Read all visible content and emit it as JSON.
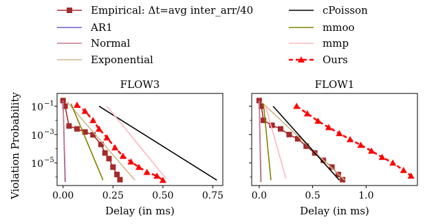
{
  "legend": {
    "entries": [
      {
        "label": "Empirical: Δt=avg inter_arr/40",
        "series": "empirical"
      },
      {
        "label": "AR1",
        "series": "ar1"
      },
      {
        "label": "Normal",
        "series": "normal"
      },
      {
        "label": "Exponential",
        "series": "exponential"
      },
      {
        "label": "cPoisson",
        "series": "cpoisson"
      },
      {
        "label": "mmoo",
        "series": "mmoo"
      },
      {
        "label": "mmp",
        "series": "mmp"
      },
      {
        "label": "Ours",
        "series": "ours"
      }
    ]
  },
  "styles": {
    "empirical": {
      "color": "#a52a2a",
      "marker": "square",
      "dash": ""
    },
    "ar1": {
      "color": "#6a5acd",
      "marker": "",
      "dash": ""
    },
    "normal": {
      "color": "#c47a8a",
      "marker": "",
      "dash": ""
    },
    "exponential": {
      "color": "#d2b48c",
      "marker": "",
      "dash": ""
    },
    "cpoisson": {
      "color": "#000000",
      "marker": "",
      "dash": ""
    },
    "mmoo": {
      "color": "#808000",
      "marker": "",
      "dash": ""
    },
    "mmp": {
      "color": "#ffb6c1",
      "marker": "",
      "dash": ""
    },
    "ours": {
      "color": "#ff0000",
      "marker": "triangle",
      "dash": "6,4"
    }
  },
  "chart_data": [
    {
      "type": "line",
      "title": "FLOW3",
      "xlabel": "Delay (in ms)",
      "ylabel": "Violation Probability",
      "yscale": "log",
      "xlim": [
        -0.03,
        0.8
      ],
      "ylim_exp": [
        -6.6,
        -0.1
      ],
      "xticks": [
        0.0,
        0.25,
        0.5,
        0.75
      ],
      "xtick_labels": [
        "0.00",
        "0.25",
        "0.50",
        "0.75"
      ],
      "yticks_exp": [
        -1,
        -3,
        -5
      ],
      "ytick_labels": [
        "10",
        "10",
        "10"
      ],
      "ytick_superscripts": [
        "−1",
        "−3",
        "−5"
      ],
      "minor_yticks_exp": [
        -2,
        -4,
        -6
      ],
      "series": [
        {
          "key": "empirical",
          "x": [
            0.0,
            0.01,
            0.03,
            0.07,
            0.11,
            0.15,
            0.19,
            0.21,
            0.23,
            0.25,
            0.27,
            0.285
          ],
          "y": [
            0.25,
            0.1,
            0.004,
            0.0025,
            0.0015,
            0.00095,
            0.0002,
            5e-05,
            2e-05,
            5e-06,
            1.5e-06,
            6.5e-07
          ]
        },
        {
          "key": "ar1",
          "x": [
            0.0,
            0.01
          ],
          "y": [
            0.25,
            4.5e-07
          ]
        },
        {
          "key": "normal",
          "x": [
            0.0,
            0.012
          ],
          "y": [
            0.25,
            4.5e-07
          ]
        },
        {
          "key": "exponential",
          "x": [
            0.02,
            0.36
          ],
          "y": [
            0.2,
            6e-07
          ]
        },
        {
          "key": "cpoisson",
          "x": [
            0.18,
            0.77
          ],
          "y": [
            0.1,
            6e-07
          ]
        },
        {
          "key": "mmoo",
          "x": [
            0.04,
            0.2
          ],
          "y": [
            0.15,
            6e-07
          ]
        },
        {
          "key": "mmp",
          "x": [
            0.22,
            0.515
          ],
          "y": [
            0.1,
            8e-07
          ]
        },
        {
          "key": "ours",
          "x": [
            0.07,
            0.11,
            0.15,
            0.18,
            0.22,
            0.26,
            0.3,
            0.34,
            0.38,
            0.42,
            0.47,
            0.5
          ],
          "y": [
            0.12,
            0.045,
            0.01,
            0.0025,
            0.0006,
            0.00012,
            3e-05,
            1.2e-05,
            5e-06,
            2.2e-06,
            1.2e-06,
            6e-07
          ]
        }
      ]
    },
    {
      "type": "line",
      "title": "FLOW1",
      "xlabel": "Delay (in ms)",
      "ylabel": "",
      "yscale": "log",
      "xlim": [
        -0.07,
        1.48
      ],
      "ylim_exp": [
        -6.6,
        -0.1
      ],
      "xticks": [
        0.0,
        0.5,
        1.0
      ],
      "xtick_labels": [
        "0.0",
        "0.5",
        "1.0"
      ],
      "yticks_exp": [
        -1,
        -3,
        -5
      ],
      "ytick_labels": [],
      "ytick_superscripts": [],
      "minor_yticks_exp": [
        -2,
        -4,
        -6
      ],
      "series": [
        {
          "key": "empirical",
          "x": [
            0.0,
            0.02,
            0.04,
            0.12,
            0.2,
            0.28,
            0.36,
            0.44,
            0.52,
            0.6,
            0.68,
            0.74,
            0.78
          ],
          "y": [
            0.25,
            0.1,
            0.01,
            0.0045,
            0.0025,
            0.001,
            0.0005,
            0.00015,
            5e-05,
            1.5e-05,
            5e-06,
            1.5e-06,
            6.5e-07
          ]
        },
        {
          "key": "ar1",
          "x": [
            0.0,
            0.015
          ],
          "y": [
            0.25,
            4.5e-07
          ]
        },
        {
          "key": "normal",
          "x": [
            0.0,
            0.018
          ],
          "y": [
            0.25,
            4.5e-07
          ]
        },
        {
          "key": "exponential",
          "x": [
            0.02,
            0.8
          ],
          "y": [
            0.2,
            6e-07
          ]
        },
        {
          "key": "cpoisson",
          "x": [
            0.13,
            0.75
          ],
          "y": [
            0.1,
            6e-07
          ]
        },
        {
          "key": "mmoo",
          "x": [
            0.04,
            0.11
          ],
          "y": [
            0.15,
            6e-07
          ]
        },
        {
          "key": "mmp",
          "x": [
            0.06,
            0.25
          ],
          "y": [
            0.1,
            8e-07
          ]
        },
        {
          "key": "ours",
          "x": [
            0.35,
            0.45,
            0.55,
            0.65,
            0.75,
            0.85,
            0.95,
            1.05,
            1.15,
            1.25,
            1.35,
            1.42
          ],
          "y": [
            0.1,
            0.03,
            0.009,
            0.0032,
            0.0012,
            0.00045,
            0.00018,
            7e-05,
            2.5e-05,
            1e-05,
            3e-06,
            1.2e-06
          ]
        }
      ]
    }
  ]
}
